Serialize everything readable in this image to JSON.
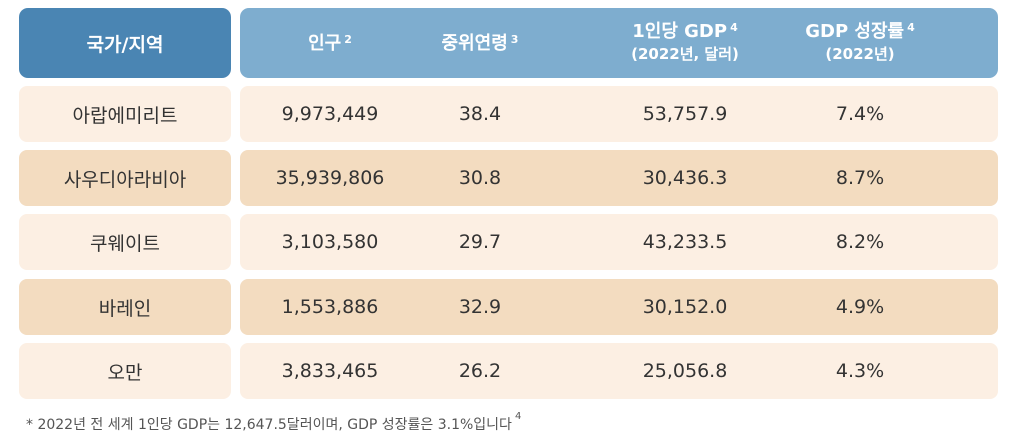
{
  "header": {
    "country": "국가/지역",
    "population": "인구",
    "population_ref": "2",
    "median_age": "중위연령",
    "median_age_ref": "3",
    "gdp_per_capita": "1인당 GDP",
    "gdp_per_capita_ref": "4",
    "gdp_per_capita_sub": "(2022년, 달러)",
    "gdp_growth": "GDP 성장률",
    "gdp_growth_ref": "4",
    "gdp_growth_sub": "(2022년)"
  },
  "rows": [
    {
      "country": "아랍에미리트",
      "population": "9,973,449",
      "median_age": "38.4",
      "gdp_per_capita": "53,757.9",
      "gdp_growth": "7.4%"
    },
    {
      "country": "사우디아라비아",
      "population": "35,939,806",
      "median_age": "30.8",
      "gdp_per_capita": "30,436.3",
      "gdp_growth": "8.7%"
    },
    {
      "country": "쿠웨이트",
      "population": "3,103,580",
      "median_age": "29.7",
      "gdp_per_capita": "43,233.5",
      "gdp_growth": "8.2%"
    },
    {
      "country": "바레인",
      "population": "1,553,886",
      "median_age": "32.9",
      "gdp_per_capita": "30,152.0",
      "gdp_growth": "4.9%"
    },
    {
      "country": "오만",
      "population": "3,833,465",
      "median_age": "26.2",
      "gdp_per_capita": "25,056.8",
      "gdp_growth": "4.3%"
    }
  ],
  "footnote": {
    "text": "* 2022년 전 세계 1인당 GDP는 12,647.5달러이며, GDP 성장률은 3.1%입니다",
    "ref": "4"
  },
  "colors": {
    "header_left": "#4a85b3",
    "header_right": "#7eadcf",
    "row_light": "#fcefe3",
    "row_dark": "#f3dcc0"
  }
}
